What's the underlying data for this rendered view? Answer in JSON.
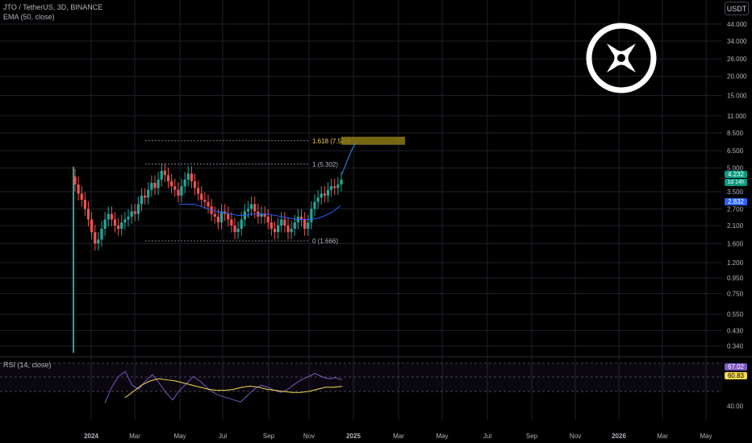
{
  "header": {
    "symbol_line": "JTO / TetherUS, 3D, BINANCE",
    "indicator_line": "EMA (50, close)",
    "currency_button": "USDT"
  },
  "price_tags": {
    "last_price": "4.232",
    "countdown": "1d 14h",
    "ema_value": "2.832",
    "rsi_value": "67.02",
    "rsi_ma_value": "60.83"
  },
  "rsi_pane": {
    "label": "RSI (14, close)",
    "ticks": [
      "40.00"
    ]
  },
  "colors": {
    "up": "#26a69a",
    "down": "#ef5350",
    "ema": "#2962ff",
    "rsi": "#7e57c2",
    "rsi_ma": "#f7d94c",
    "fib_target": "#8a7a14",
    "background": "#000000"
  },
  "logo_icon": "jito-x-logo-icon",
  "chart_data": [
    {
      "type": "candlestick",
      "scale": "log",
      "y_ticks": [
        "44.000",
        "34.000",
        "26.000",
        "20.000",
        "15.000",
        "11.000",
        "8.500",
        "6.500",
        "5.000",
        "3.500",
        "2.700",
        "2.100",
        "1.600",
        "1.200",
        "0.950",
        "0.750",
        "0.550",
        "0.430",
        "0.340"
      ],
      "x_ticks": [
        "2024",
        "Mar",
        "May",
        "Jul",
        "Sep",
        "Nov",
        "2025",
        "Mar",
        "May",
        "Jul",
        "Sep",
        "Nov",
        "2026",
        "Mar",
        "May"
      ],
      "ylim": [
        0.3,
        56
      ],
      "series": [
        {
          "name": "JTO/USDT",
          "approx_closes": [
            3.9,
            3.4,
            3.1,
            2.7,
            2.3,
            1.9,
            1.6,
            1.7,
            2.0,
            2.3,
            2.5,
            2.3,
            2.1,
            2.0,
            2.2,
            2.3,
            2.4,
            2.6,
            2.5,
            2.9,
            3.3,
            3.2,
            3.6,
            4.0,
            3.7,
            4.2,
            4.8,
            4.5,
            4.1,
            3.8,
            3.6,
            3.3,
            3.8,
            4.2,
            4.6,
            4.1,
            3.7,
            3.4,
            3.1,
            3.0,
            2.8,
            2.5,
            2.4,
            2.2,
            2.6,
            2.5,
            2.3,
            2.1,
            1.9,
            2.0,
            2.3,
            2.6,
            2.7,
            2.9,
            2.6,
            2.4,
            2.5,
            2.4,
            2.2,
            2.0,
            1.9,
            2.1,
            2.3,
            2.1,
            1.9,
            2.0,
            2.2,
            2.4,
            2.3,
            2.0,
            2.2,
            2.7,
            3.0,
            3.2,
            3.4,
            3.3,
            3.6,
            3.8,
            3.7,
            3.9,
            4.2
          ]
        },
        {
          "name": "EMA (50, close)",
          "approx_values": [
            2.9,
            2.9,
            2.9,
            2.8,
            2.7,
            2.6,
            2.55,
            2.5,
            2.45,
            2.45,
            2.5,
            2.5,
            2.5,
            2.45,
            2.4,
            2.35,
            2.3,
            2.3,
            2.3,
            2.35,
            2.45,
            2.6,
            2.832
          ]
        }
      ],
      "fibonacci": [
        {
          "label": "1.618 (7.550)",
          "level": 7.55
        },
        {
          "label": "1 (5.302)",
          "level": 5.302
        },
        {
          "label": "0 (1.666)",
          "level": 1.666
        }
      ],
      "projection_target": 7.55
    },
    {
      "type": "line",
      "title": "RSI (14, close)",
      "series": [
        {
          "name": "RSI",
          "last": 67.02
        },
        {
          "name": "RSI MA",
          "last": 60.83
        }
      ]
    }
  ]
}
